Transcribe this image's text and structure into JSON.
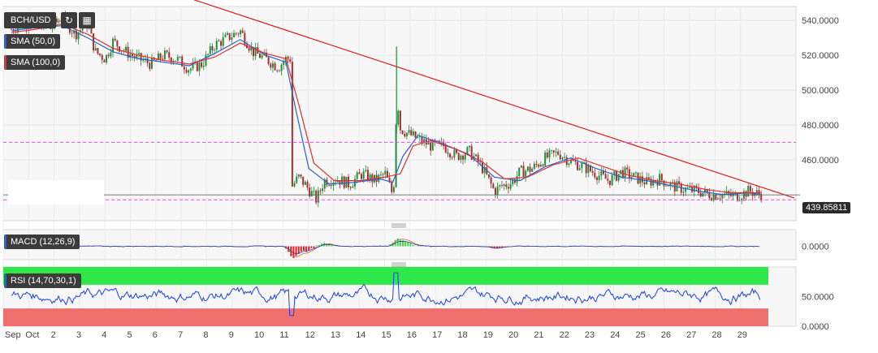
{
  "symbol": "BCH/USD",
  "toolbar": {
    "refresh_icon": "refresh-icon",
    "calendar_icon": "calendar-icon"
  },
  "indicators": {
    "sma50": {
      "label": "SMA (50,0)",
      "color": "#2962cc"
    },
    "sma100": {
      "label": "SMA (100,0)",
      "color": "#e03030"
    },
    "macd": {
      "label": "MACD (12,26,9)"
    },
    "rsi": {
      "label": "RSI (14,70,30,1)"
    }
  },
  "last_price": "439.85811",
  "colors": {
    "up": "#1f8f3a",
    "down": "#a33030",
    "trendline": "#e01b1b",
    "support": "#ff3df5",
    "rsi_line": "#1e3ee8",
    "rsi_overbought": "#2ee84a",
    "rsi_oversold": "#f07070",
    "macd_pos": "#3dde3d",
    "macd_neg": "#e02020"
  },
  "chart_data": {
    "type": "line",
    "price_axis": {
      "ticks": [
        "540.0000",
        "520.0000",
        "500.0000",
        "480.0000",
        "460.0000"
      ],
      "range": [
        425,
        548
      ]
    },
    "x_axis": {
      "labels": [
        "Sep",
        "Oct",
        "2",
        "3",
        "4",
        "5",
        "6",
        "7",
        "8",
        "9",
        "10",
        "11",
        "12",
        "13",
        "14",
        "15",
        "16",
        "17",
        "18",
        "19",
        "20",
        "21",
        "22",
        "23",
        "24",
        "25",
        "26",
        "27",
        "28",
        "29"
      ]
    },
    "price_path": [
      [
        0,
        535
      ],
      [
        0.5,
        538
      ],
      [
        1,
        540
      ],
      [
        1.5,
        535
      ],
      [
        2,
        542
      ],
      [
        2.5,
        532
      ],
      [
        3,
        538
      ],
      [
        3.3,
        522
      ],
      [
        3.7,
        518
      ],
      [
        4,
        528
      ],
      [
        4.5,
        522
      ],
      [
        5,
        518
      ],
      [
        5.5,
        515
      ],
      [
        6,
        520
      ],
      [
        6.5,
        518
      ],
      [
        7,
        512
      ],
      [
        7.5,
        515
      ],
      [
        8,
        526
      ],
      [
        8.5,
        530
      ],
      [
        9,
        534
      ],
      [
        9.5,
        522
      ],
      [
        10,
        518
      ],
      [
        10.5,
        513
      ],
      [
        10.8,
        518
      ],
      [
        11,
        518
      ],
      [
        11.05,
        445
      ],
      [
        11.3,
        450
      ],
      [
        11.6,
        445
      ],
      [
        12,
        437
      ],
      [
        12.3,
        448
      ],
      [
        12.8,
        449
      ],
      [
        13.3,
        446
      ],
      [
        13.8,
        452
      ],
      [
        14.3,
        448
      ],
      [
        14.7,
        452
      ],
      [
        15,
        440
      ],
      [
        15.1,
        455
      ],
      [
        15.15,
        500
      ],
      [
        15.3,
        478
      ],
      [
        15.6,
        475
      ],
      [
        16,
        472
      ],
      [
        16.5,
        468
      ],
      [
        17,
        468
      ],
      [
        17.5,
        462
      ],
      [
        18,
        465
      ],
      [
        18.5,
        456
      ],
      [
        19,
        442
      ],
      [
        19.3,
        445
      ],
      [
        19.7,
        447
      ],
      [
        20,
        453
      ],
      [
        20.5,
        455
      ],
      [
        21,
        461
      ],
      [
        21.5,
        464
      ],
      [
        22,
        459
      ],
      [
        22.5,
        456
      ],
      [
        23,
        452
      ],
      [
        23.5,
        448
      ],
      [
        24,
        453
      ],
      [
        24.5,
        450
      ],
      [
        25,
        447
      ],
      [
        25.5,
        449
      ],
      [
        26,
        445
      ],
      [
        26.5,
        443
      ],
      [
        27,
        442
      ],
      [
        27.5,
        440
      ],
      [
        28,
        440
      ],
      [
        28.5,
        439
      ],
      [
        29,
        442
      ],
      [
        29.5,
        440
      ]
    ],
    "sma50_path": [
      [
        0,
        534
      ],
      [
        1,
        536
      ],
      [
        2,
        537
      ],
      [
        3,
        530
      ],
      [
        4,
        522
      ],
      [
        5,
        518
      ],
      [
        6,
        516
      ],
      [
        7,
        514
      ],
      [
        8,
        521
      ],
      [
        9,
        529
      ],
      [
        10,
        520
      ],
      [
        10.8,
        516
      ],
      [
        11.2,
        488
      ],
      [
        11.7,
        455
      ],
      [
        12.5,
        446
      ],
      [
        13.5,
        447
      ],
      [
        14.5,
        449
      ],
      [
        15,
        447
      ],
      [
        15.4,
        462
      ],
      [
        16,
        474
      ],
      [
        17,
        469
      ],
      [
        18,
        463
      ],
      [
        19,
        450
      ],
      [
        20,
        448
      ],
      [
        21,
        456
      ],
      [
        22,
        461
      ],
      [
        23,
        455
      ],
      [
        24,
        450
      ],
      [
        25,
        448
      ],
      [
        26,
        445
      ],
      [
        27,
        442
      ],
      [
        28,
        440
      ],
      [
        29,
        441
      ],
      [
        29.5,
        440
      ]
    ],
    "sma100_path": [
      [
        0,
        533
      ],
      [
        1,
        535
      ],
      [
        2,
        538
      ],
      [
        3,
        532
      ],
      [
        4,
        524
      ],
      [
        5,
        520
      ],
      [
        6,
        517
      ],
      [
        7,
        515
      ],
      [
        8,
        519
      ],
      [
        9,
        527
      ],
      [
        10,
        521
      ],
      [
        10.8,
        518
      ],
      [
        11.3,
        492
      ],
      [
        11.9,
        458
      ],
      [
        12.7,
        448
      ],
      [
        13.7,
        448
      ],
      [
        14.7,
        450
      ],
      [
        15.3,
        452
      ],
      [
        15.8,
        468
      ],
      [
        16.5,
        471
      ],
      [
        17.5,
        466
      ],
      [
        18.5,
        459
      ],
      [
        19.4,
        449
      ],
      [
        20.3,
        450
      ],
      [
        21.3,
        457
      ],
      [
        22.3,
        461
      ],
      [
        23.3,
        456
      ],
      [
        24.3,
        451
      ],
      [
        25.3,
        448
      ],
      [
        26.3,
        446
      ],
      [
        27.3,
        443
      ],
      [
        28.3,
        441
      ],
      [
        29.5,
        441
      ]
    ],
    "trendline": [
      [
        5.7,
        559
      ],
      [
        30.8,
        438
      ]
    ],
    "support_levels": [
      470,
      437
    ],
    "last_price_level": 439.86,
    "macd": {
      "axis_ticks": [
        "0.0000"
      ],
      "spikes": [
        [
          11.1,
          -10
        ],
        [
          11.6,
          -4
        ],
        [
          12.3,
          3
        ],
        [
          15.2,
          7
        ],
        [
          15.6,
          3
        ],
        [
          19,
          -2
        ]
      ]
    },
    "rsi": {
      "axis_ticks": [
        "50.0000",
        "0.0000"
      ],
      "overbought": 70,
      "oversold": 30,
      "range": [
        0,
        100
      ]
    }
  }
}
